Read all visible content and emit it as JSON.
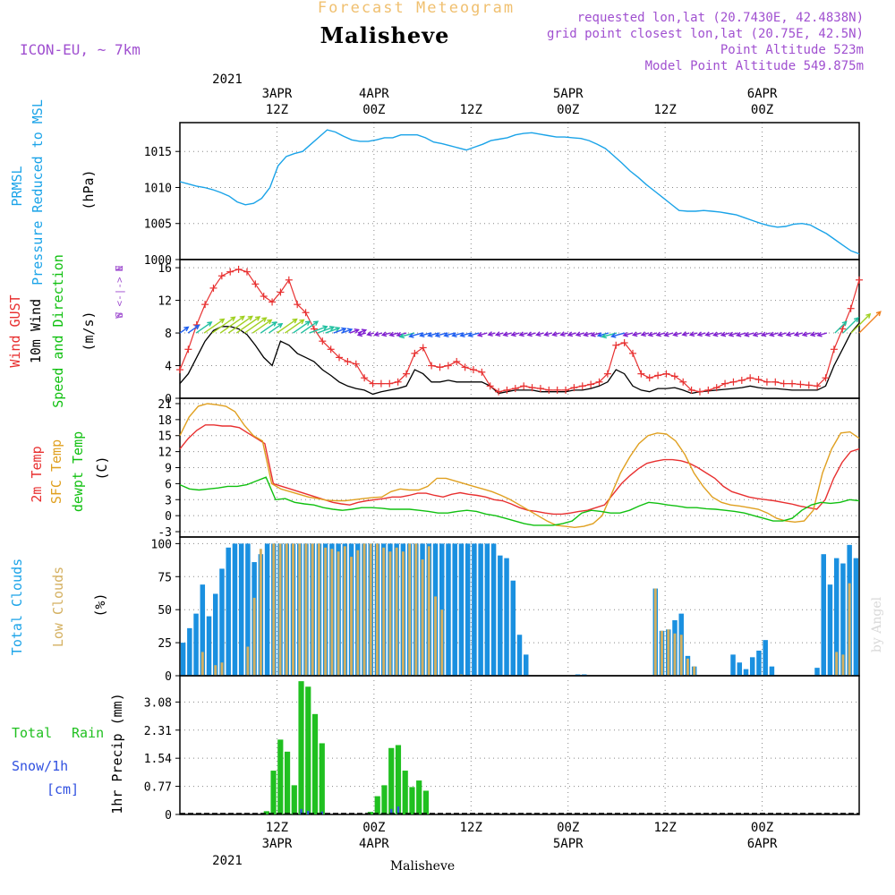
{
  "header": {
    "top_title": "Forecast Meteogram",
    "location": "Malisheve",
    "model": "ICON-EU, ~ 7km",
    "requested": "requested lon,lat (20.7430E, 42.4838N)",
    "gridpoint": "grid point closest lon,lat (20.75E, 42.5N)",
    "altitude": "Point Altitude 523m",
    "model_altitude": "Model Point Altitude 549.875m"
  },
  "top_axis": {
    "year": "2021",
    "labels": [
      {
        "hour": 12,
        "l1": "3APR",
        "l2": "12Z"
      },
      {
        "hour": 24,
        "l1": "4APR",
        "l2": "00Z"
      },
      {
        "hour": 36,
        "l1": "",
        "l2": "12Z"
      },
      {
        "hour": 48,
        "l1": "5APR",
        "l2": "00Z"
      },
      {
        "hour": 60,
        "l1": "",
        "l2": "12Z"
      },
      {
        "hour": 72,
        "l1": "6APR",
        "l2": "00Z"
      }
    ]
  },
  "bottom_axis": {
    "year": "2021",
    "labels": [
      {
        "hour": 12,
        "l1": "12Z",
        "l2": "3APR"
      },
      {
        "hour": 24,
        "l1": "00Z",
        "l2": "4APR"
      },
      {
        "hour": 36,
        "l1": "12Z",
        "l2": ""
      },
      {
        "hour": 48,
        "l1": "00Z",
        "l2": "5APR"
      },
      {
        "hour": 60,
        "l1": "12Z",
        "l2": ""
      },
      {
        "hour": 72,
        "l1": "00Z",
        "l2": "6APR"
      }
    ],
    "footer": "Malisheve"
  },
  "panel_labels": {
    "pressure": [
      "PRMSL",
      "Pressure Reduced to MSL",
      "(hPa)"
    ],
    "wind": [
      "Wind GUST",
      "10m Wind",
      "Speed and Direction",
      "(m/s)"
    ],
    "wind_compass": [
      "N",
      "W <-|-> E",
      "S"
    ],
    "temp": [
      "2m Temp",
      "SFC Temp",
      "dewpt Temp",
      "(C)"
    ],
    "clouds": [
      "Total Clouds",
      "Low Clouds",
      "(%)"
    ],
    "precip": [
      "Total",
      "Rain",
      "Snow/1h",
      "[cm]",
      "1hr Precip (mm)"
    ]
  },
  "watermark": "by Angel",
  "colors": {
    "pressure": "#1aa3e8",
    "gust": "#e83030",
    "wind": "#000000",
    "t2m": "#e83030",
    "sfc": "#e0a020",
    "dew": "#10c010",
    "total_cloud": "#1a90e0",
    "low_cloud": "#d4b060",
    "rain": "#20c020",
    "snow": "#3050e0",
    "header_title": "#f0c070",
    "header_purple": "#a050d0"
  },
  "chart_data": [
    {
      "type": "line",
      "name": "pressure",
      "x_hours_start": 0,
      "x_hours_step": 1,
      "ylim": [
        1000,
        1019
      ],
      "yticks": [
        1000,
        1005,
        1010,
        1015
      ],
      "series": [
        {
          "name": "PRMSL",
          "values": [
            1010.8,
            1010.5,
            1010.2,
            1010.0,
            1009.7,
            1009.3,
            1008.8,
            1008.0,
            1007.6,
            1007.8,
            1008.5,
            1010.0,
            1013.0,
            1014.3,
            1014.7,
            1015.0,
            1016.0,
            1017.0,
            1018.0,
            1017.7,
            1017.1,
            1016.6,
            1016.4,
            1016.4,
            1016.6,
            1016.9,
            1016.9,
            1017.3,
            1017.3,
            1017.3,
            1016.9,
            1016.3,
            1016.1,
            1015.8,
            1015.5,
            1015.2,
            1015.6,
            1016.0,
            1016.5,
            1016.7,
            1016.9,
            1017.3,
            1017.5,
            1017.6,
            1017.4,
            1017.2,
            1017.0,
            1017.0,
            1016.9,
            1016.8,
            1016.5,
            1016.0,
            1015.4,
            1014.4,
            1013.4,
            1012.3,
            1011.4,
            1010.4,
            1009.5,
            1008.6,
            1007.7,
            1006.8,
            1006.7,
            1006.7,
            1006.8,
            1006.7,
            1006.6,
            1006.4,
            1006.2,
            1005.8,
            1005.4,
            1005.0,
            1004.7,
            1004.5,
            1004.6,
            1004.9,
            1005.0,
            1004.8,
            1004.2,
            1003.6,
            1002.8,
            1002.0,
            1001.2,
            1000.8
          ]
        }
      ]
    },
    {
      "type": "line",
      "name": "wind",
      "x_hours_start": 0,
      "x_hours_step": 1,
      "ylim": [
        0,
        17
      ],
      "yticks": [
        0,
        4,
        8,
        12,
        16
      ],
      "series": [
        {
          "name": "Wind GUST",
          "values": [
            3.5,
            6.0,
            9.0,
            11.5,
            13.5,
            15.0,
            15.5,
            15.8,
            15.5,
            14.0,
            12.5,
            11.8,
            13.0,
            14.5,
            11.5,
            10.5,
            8.5,
            7.0,
            6.0,
            5.0,
            4.5,
            4.2,
            2.5,
            1.8,
            1.8,
            1.8,
            2.0,
            3.0,
            5.5,
            6.2,
            4.0,
            3.8,
            4.0,
            4.5,
            3.8,
            3.5,
            3.2,
            1.5,
            0.8,
            1.0,
            1.2,
            1.5,
            1.3,
            1.2,
            1.0,
            1.0,
            1.0,
            1.3,
            1.5,
            1.7,
            2.0,
            3.0,
            6.5,
            6.8,
            5.5,
            3.0,
            2.5,
            2.8,
            3.0,
            2.7,
            2.0,
            1.0,
            0.8,
            1.0,
            1.3,
            1.8,
            2.0,
            2.2,
            2.5,
            2.3,
            2.0,
            2.0,
            1.8,
            1.8,
            1.7,
            1.6,
            1.5,
            2.5,
            6.0,
            8.5,
            11.0,
            14.5
          ]
        },
        {
          "name": "10m Wind",
          "values": [
            1.8,
            3.0,
            5.0,
            7.0,
            8.3,
            8.8,
            8.8,
            8.5,
            7.8,
            6.5,
            5.0,
            4.0,
            7.0,
            6.5,
            5.5,
            5.0,
            4.5,
            3.5,
            2.8,
            2.0,
            1.5,
            1.2,
            1.0,
            0.5,
            0.8,
            1.0,
            1.2,
            1.5,
            3.5,
            3.0,
            2.0,
            2.0,
            2.2,
            2.0,
            2.0,
            2.0,
            2.0,
            1.5,
            0.6,
            0.8,
            1.0,
            1.0,
            1.0,
            0.8,
            0.8,
            0.8,
            0.8,
            1.0,
            1.0,
            1.2,
            1.5,
            2.0,
            3.5,
            3.0,
            1.5,
            1.0,
            0.8,
            1.2,
            1.2,
            1.3,
            1.0,
            0.6,
            0.8,
            0.9,
            1.0,
            1.1,
            1.2,
            1.3,
            1.5,
            1.3,
            1.2,
            1.2,
            1.1,
            1.0,
            1.0,
            1.0,
            1.0,
            1.5,
            4.0,
            6.0,
            8.0,
            9.2
          ]
        }
      ],
      "xlabel": "",
      "ylabel": "(m/s)"
    },
    {
      "type": "line",
      "name": "temperature",
      "x_hours_start": 0,
      "x_hours_step": 1,
      "ylim": [
        -4,
        22
      ],
      "yticks": [
        -3,
        0,
        3,
        6,
        9,
        12,
        15,
        18,
        21
      ],
      "series": [
        {
          "name": "2m Temp",
          "values": [
            12.5,
            14.5,
            16.0,
            17.0,
            17.0,
            16.8,
            16.8,
            16.5,
            15.5,
            14.5,
            13.5,
            6.0,
            5.5,
            5.0,
            4.5,
            4.0,
            3.5,
            3.0,
            2.5,
            2.2,
            2.0,
            2.5,
            2.8,
            3.0,
            3.2,
            3.5,
            3.5,
            3.8,
            4.2,
            4.2,
            3.8,
            3.5,
            4.0,
            4.3,
            4.0,
            3.8,
            3.5,
            3.0,
            2.8,
            2.2,
            1.5,
            1.0,
            0.8,
            0.5,
            0.3,
            0.3,
            0.5,
            0.8,
            1.0,
            1.5,
            2.0,
            4.0,
            6.0,
            7.5,
            8.8,
            9.8,
            10.2,
            10.5,
            10.5,
            10.3,
            9.8,
            9.0,
            8.0,
            7.0,
            5.5,
            4.5,
            4.0,
            3.5,
            3.2,
            3.0,
            2.8,
            2.5,
            2.2,
            1.8,
            1.5,
            1.2,
            3.0,
            7.0,
            10.0,
            12.0,
            12.5
          ]
        },
        {
          "name": "SFC Temp",
          "values": [
            15.0,
            18.5,
            20.5,
            21.0,
            20.8,
            20.5,
            19.5,
            17.0,
            15.0,
            14.0,
            6.0,
            5.0,
            4.5,
            4.0,
            3.5,
            3.2,
            2.9,
            2.8,
            2.8,
            3.0,
            3.2,
            3.4,
            3.5,
            4.5,
            5.0,
            4.8,
            4.8,
            5.5,
            7.0,
            7.0,
            6.5,
            6.0,
            5.5,
            5.0,
            4.5,
            3.8,
            3.0,
            2.0,
            1.0,
            0.0,
            -1.0,
            -1.8,
            -2.0,
            -2.2,
            -2.0,
            -1.5,
            0.0,
            4.0,
            8.0,
            11.0,
            13.5,
            15.0,
            15.5,
            15.3,
            14.0,
            11.5,
            8.0,
            5.5,
            3.5,
            2.5,
            2.0,
            1.8,
            1.5,
            1.2,
            0.5,
            -0.5,
            -1.0,
            -1.2,
            -1.0,
            1.0,
            8.0,
            12.5,
            15.5,
            15.7,
            14.5
          ]
        },
        {
          "name": "dewpt Temp",
          "values": [
            5.8,
            5.0,
            4.8,
            5.0,
            5.2,
            5.5,
            5.5,
            5.8,
            6.5,
            7.2,
            3.0,
            3.2,
            2.5,
            2.2,
            2.0,
            1.5,
            1.2,
            1.0,
            1.2,
            1.5,
            1.5,
            1.4,
            1.2,
            1.2,
            1.2,
            1.0,
            0.8,
            0.5,
            0.5,
            0.8,
            1.0,
            0.8,
            0.3,
            0.0,
            -0.5,
            -1.0,
            -1.5,
            -1.8,
            -1.8,
            -1.8,
            -1.5,
            -1.0,
            0.5,
            1.0,
            0.8,
            0.5,
            0.5,
            1.0,
            1.8,
            2.5,
            2.3,
            2.0,
            1.8,
            1.5,
            1.5,
            1.3,
            1.2,
            1.0,
            0.8,
            0.5,
            0.0,
            -0.5,
            -1.0,
            -1.0,
            -0.5,
            1.0,
            2.0,
            2.5,
            2.3,
            2.5,
            3.0,
            2.8
          ]
        }
      ],
      "ylabel": "(C)"
    },
    {
      "type": "bar",
      "name": "clouds",
      "x_hours_start": 0,
      "x_hours_step": 1,
      "ylim": [
        0,
        105
      ],
      "yticks": [
        0,
        25,
        50,
        75,
        100
      ],
      "series": [
        {
          "name": "Total Clouds",
          "values": [
            25,
            36,
            47,
            69,
            45,
            62,
            81,
            97,
            100,
            100,
            100,
            86,
            92,
            100,
            100,
            100,
            100,
            100,
            100,
            100,
            100,
            100,
            100,
            100,
            100,
            100,
            100,
            100,
            100,
            100,
            100,
            100,
            100,
            100,
            100,
            100,
            100,
            100,
            100,
            100,
            100,
            100,
            100,
            100,
            100,
            100,
            100,
            100,
            100,
            91,
            89,
            72,
            31,
            16,
            0,
            0,
            0,
            0,
            0,
            0,
            0,
            1,
            1,
            0,
            0,
            0,
            0,
            0,
            0,
            0,
            0,
            0,
            0,
            66,
            34,
            35,
            42,
            47,
            15,
            7,
            0,
            0,
            0,
            0,
            0,
            16,
            10,
            5,
            14,
            19,
            27,
            7,
            0,
            0,
            0,
            0,
            0,
            0,
            6,
            92,
            69,
            89,
            85,
            99,
            89
          ]
        },
        {
          "name": "Low Clouds",
          "values": [
            0,
            0,
            0,
            18,
            0,
            8,
            10,
            0,
            0,
            0,
            22,
            59,
            96,
            0,
            100,
            100,
            100,
            100,
            100,
            100,
            100,
            100,
            97,
            96,
            94,
            98,
            90,
            95,
            100,
            100,
            100,
            97,
            94,
            97,
            94,
            100,
            100,
            88,
            98,
            60,
            50,
            0,
            0,
            1,
            0,
            0,
            0,
            0,
            0,
            0,
            0,
            0,
            0,
            0,
            0,
            0,
            0,
            0,
            0,
            0,
            0,
            0,
            0,
            0,
            0,
            0,
            0,
            0,
            0,
            0,
            0,
            0,
            0,
            66,
            34,
            35,
            32,
            31,
            13,
            7,
            0,
            0,
            0,
            0,
            0,
            0,
            0,
            0,
            0,
            0,
            0,
            0,
            0,
            0,
            0,
            0,
            0,
            0,
            0,
            0,
            0,
            18,
            16,
            70
          ]
        }
      ]
    },
    {
      "type": "bar",
      "name": "precip",
      "x_hours_start": 0,
      "x_hours_step": 1,
      "ylim": [
        0,
        3.8
      ],
      "yticks": [
        0,
        0.77,
        1.54,
        2.31,
        3.08
      ],
      "series": [
        {
          "name": "Total Rain",
          "values": [
            0,
            0,
            0,
            0,
            0,
            0,
            0,
            0,
            0,
            0,
            0,
            0,
            0.09,
            1.2,
            2.05,
            1.72,
            0.8,
            3.65,
            3.5,
            2.75,
            1.95,
            0,
            0,
            0,
            0,
            0,
            0,
            0.07,
            0.5,
            0.8,
            1.82,
            1.9,
            1.2,
            0.75,
            0.93,
            0.65,
            0,
            0,
            0,
            0,
            0,
            0,
            0,
            0,
            0,
            0,
            0,
            0,
            0,
            0,
            0,
            0,
            0,
            0,
            0,
            0,
            0,
            0,
            0,
            0,
            0,
            0,
            0,
            0,
            0,
            0,
            0,
            0,
            0,
            0,
            0,
            0,
            0,
            0,
            0,
            0,
            0,
            0,
            0,
            0,
            0,
            0,
            0,
            0,
            0,
            0,
            0,
            0,
            0,
            0,
            0,
            0,
            0,
            0,
            0,
            0,
            0,
            0
          ]
        },
        {
          "name": "Snow/1h",
          "values": [
            0,
            0,
            0,
            0,
            0,
            0,
            0,
            0,
            0,
            0,
            0,
            0,
            0,
            0,
            0,
            0,
            0,
            0.15,
            0.1,
            0,
            0.08,
            0,
            0,
            0,
            0,
            0,
            0,
            0,
            0,
            0,
            0.15,
            0.22,
            0,
            0,
            0,
            0,
            0,
            0,
            0,
            0,
            0,
            0,
            0,
            0,
            0,
            0,
            0,
            0,
            0,
            0,
            0,
            0,
            0,
            0,
            0,
            0,
            0,
            0,
            0,
            0,
            0,
            0,
            0,
            0,
            0,
            0,
            0,
            0,
            0,
            0,
            0,
            0,
            0,
            0,
            0,
            0,
            0,
            0,
            0,
            0,
            0,
            0,
            0,
            0,
            0,
            0,
            0,
            0,
            0,
            0,
            0,
            0,
            0,
            0,
            0,
            0,
            0,
            0
          ]
        }
      ],
      "ylabel": "1hr Precip (mm)"
    }
  ]
}
